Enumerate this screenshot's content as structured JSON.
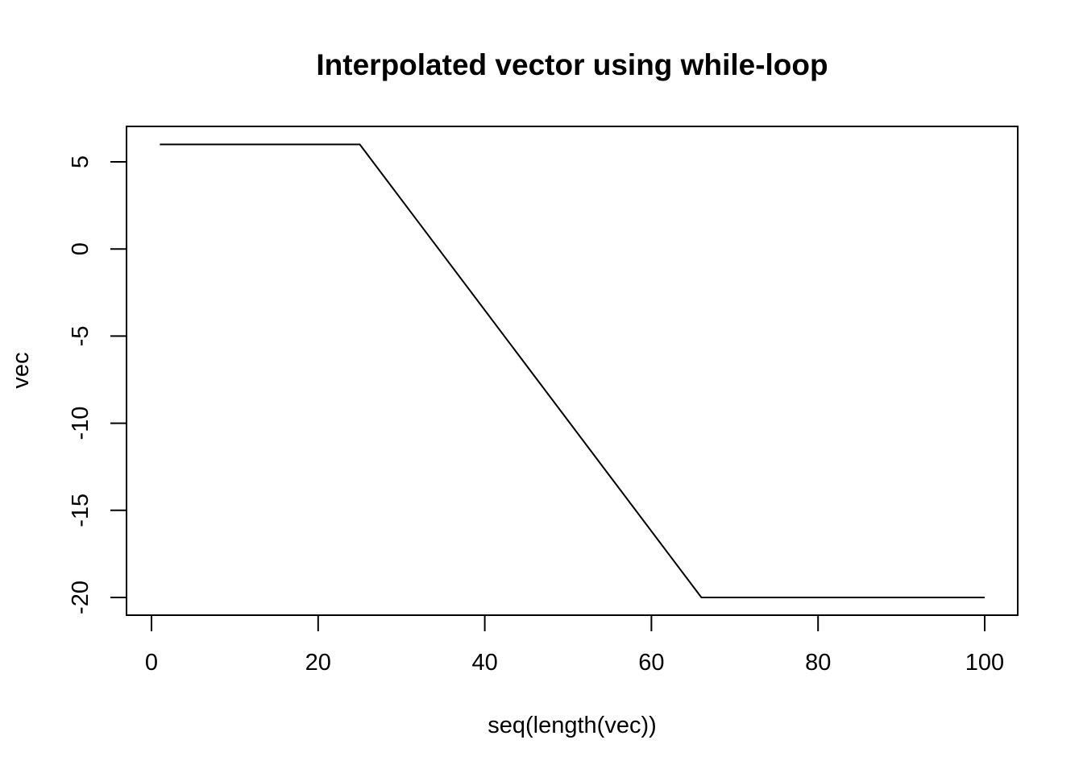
{
  "chart_data": {
    "type": "line",
    "title": "Interpolated vector using while-loop",
    "xlabel": "seq(length(vec))",
    "ylabel": "vec",
    "xlim": [
      1,
      100
    ],
    "ylim": [
      -20,
      6
    ],
    "grid": false,
    "legend": "none",
    "x_ticks": [
      0,
      20,
      40,
      60,
      80,
      100
    ],
    "x_tick_labels": [
      "0",
      "20",
      "40",
      "60",
      "80",
      "100"
    ],
    "y_ticks": [
      -20,
      -15,
      -10,
      -5,
      0,
      5
    ],
    "y_tick_labels": [
      "-20",
      "-15",
      "-10",
      "-5",
      "0",
      "5"
    ],
    "series": [
      {
        "color": "#000000",
        "points": [
          [
            1,
            6
          ],
          [
            25,
            6
          ],
          [
            66,
            -20
          ],
          [
            100,
            -20
          ]
        ]
      }
    ]
  }
}
